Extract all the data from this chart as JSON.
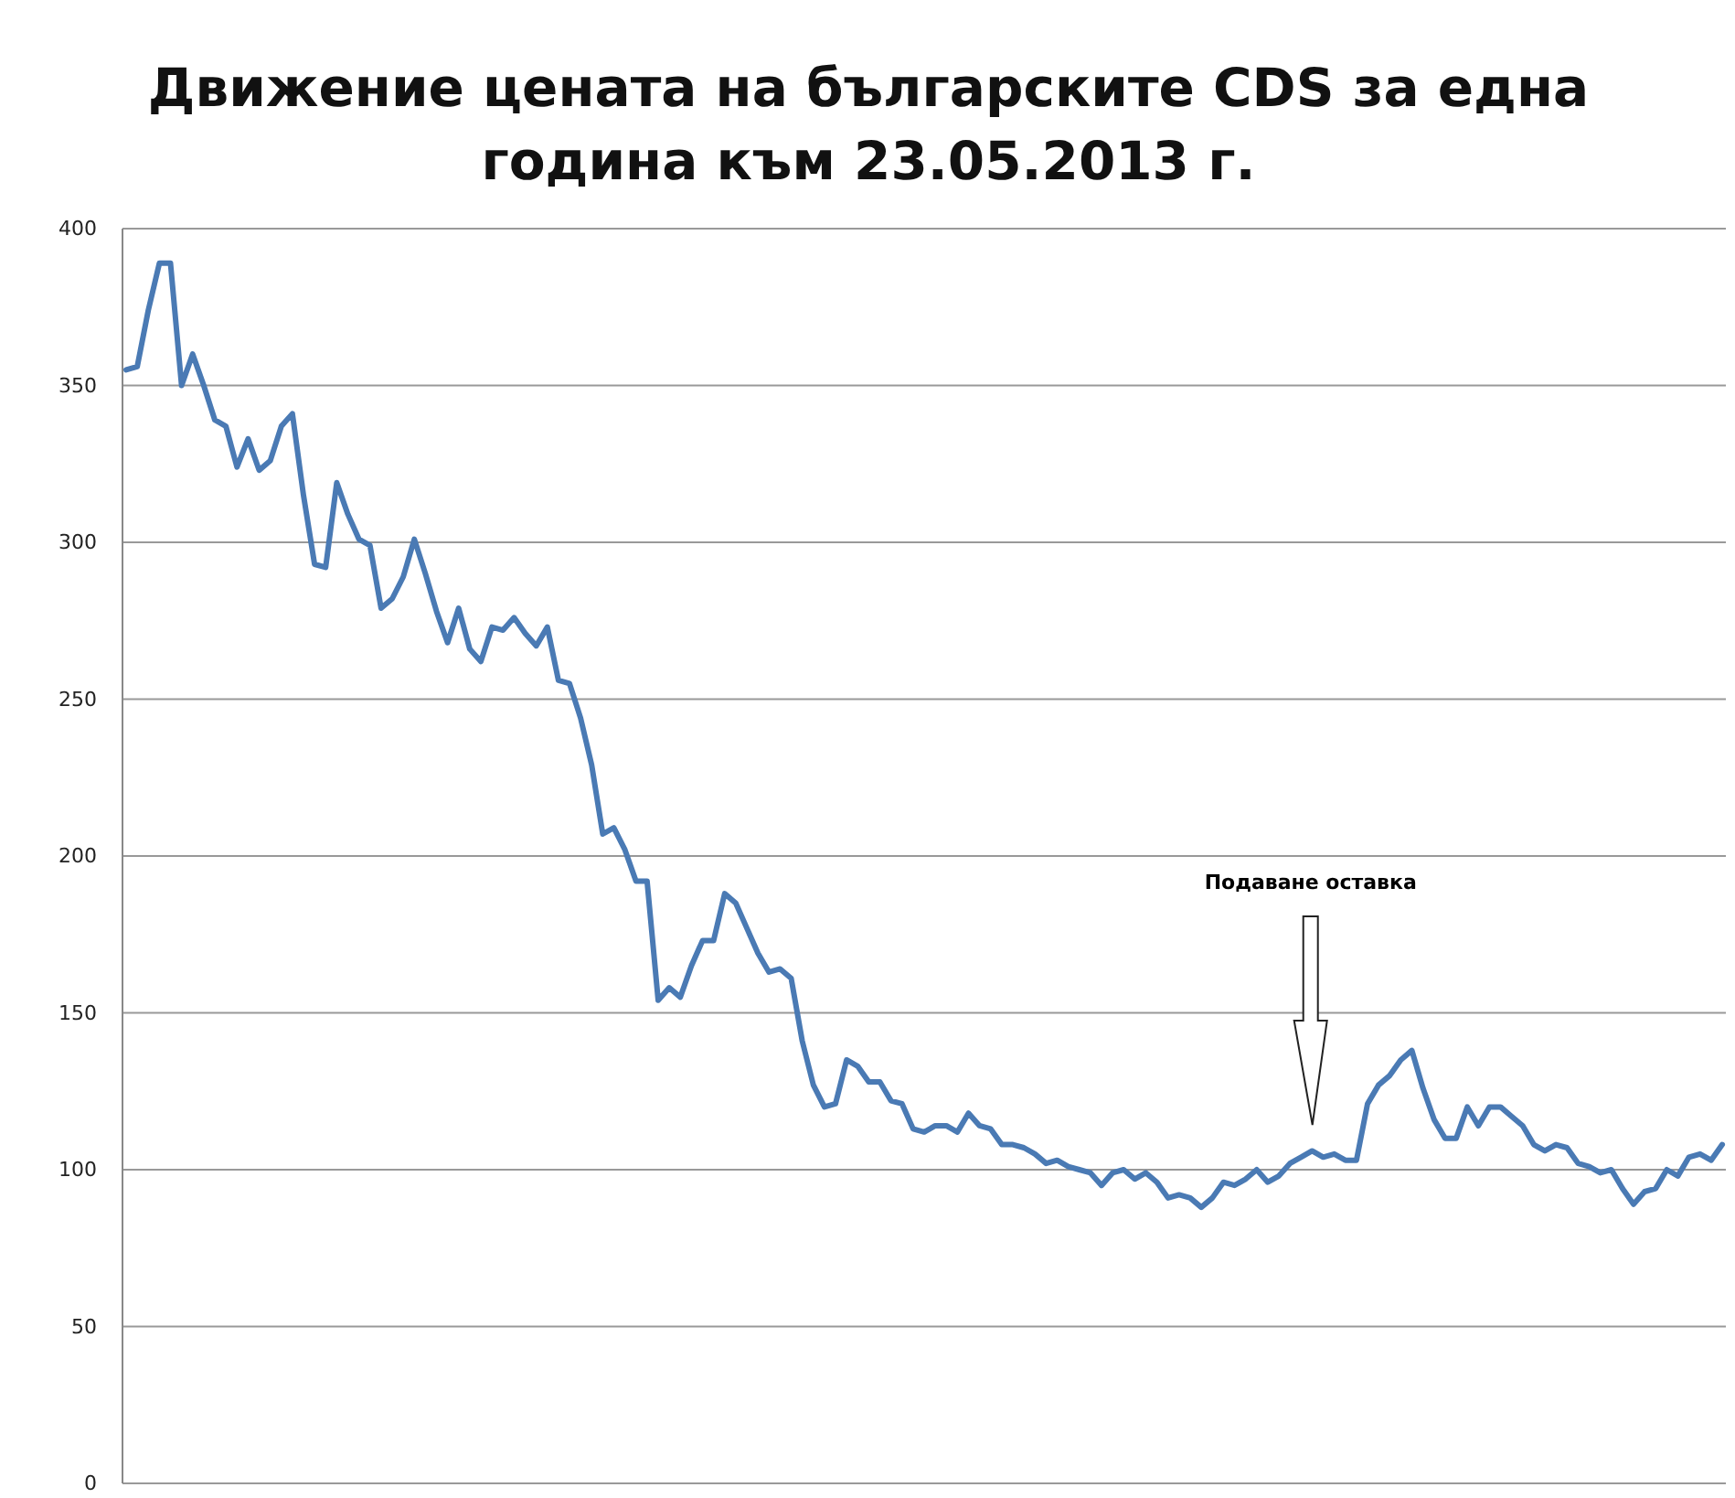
{
  "chart_data": {
    "type": "line",
    "title": "Движение цената на българските CDS за една година към 23.05.2013 г.",
    "categories": [
      null,
      null,
      null,
      null,
      null,
      null,
      null,
      null,
      null,
      null,
      null,
      null,
      null,
      null,
      null,
      null,
      null,
      null,
      null,
      null,
      null,
      null,
      null,
      null,
      null,
      null,
      null,
      null,
      null,
      null,
      null,
      null,
      null,
      null,
      null,
      null,
      null,
      null,
      null,
      null,
      null,
      null,
      null,
      null,
      null,
      null,
      null,
      null,
      null,
      null,
      null,
      null,
      null,
      null,
      null,
      null,
      null,
      null,
      null,
      null,
      null,
      null,
      null,
      null,
      null,
      null,
      null,
      null,
      null,
      null,
      null,
      null,
      null,
      null,
      null,
      null,
      null,
      null,
      null,
      null,
      null,
      null,
      null,
      null,
      null,
      null,
      null,
      null,
      null,
      null,
      null,
      null,
      null,
      null,
      null,
      null,
      null,
      null,
      null,
      null,
      null,
      null,
      null,
      null,
      null,
      null,
      null,
      null,
      null,
      null,
      null,
      null,
      null,
      null,
      null,
      null,
      null,
      null,
      null,
      null,
      null,
      null,
      null,
      null,
      null,
      null,
      null,
      null,
      null,
      null,
      null,
      null,
      null,
      null,
      null,
      null,
      null,
      null,
      null,
      null,
      null,
      null,
      null,
      null,
      null
    ],
    "series": [
      {
        "color": "#4a7ab4",
        "values": [
          355,
          356,
          374,
          389,
          389,
          350,
          360,
          350,
          339,
          337,
          324,
          333,
          323,
          326,
          337,
          341,
          315,
          293,
          292,
          319,
          309,
          301,
          299,
          279,
          282,
          289,
          301,
          290,
          278,
          268,
          279,
          266,
          262,
          273,
          272,
          276,
          271,
          267,
          273,
          256,
          255,
          244,
          229,
          207,
          209,
          202,
          192,
          192,
          154,
          158,
          155,
          165,
          173,
          173,
          188,
          185,
          177,
          169,
          163,
          164,
          161,
          141,
          127,
          120,
          121,
          135,
          133,
          128,
          128,
          122,
          121,
          113,
          112,
          114,
          114,
          112,
          118,
          114,
          113,
          108,
          108,
          107,
          105,
          102,
          103,
          101,
          100,
          99,
          95,
          99,
          100,
          97,
          99,
          96,
          91,
          92,
          91,
          88,
          91,
          96,
          95,
          97,
          100,
          96,
          98,
          102,
          104,
          106,
          104,
          105,
          103,
          103,
          121,
          127,
          130,
          135,
          138,
          126,
          116,
          110,
          110,
          120,
          114,
          120,
          120,
          117,
          114,
          108,
          106,
          108,
          107,
          102,
          101,
          99,
          100,
          94,
          89,
          93,
          94,
          100,
          98,
          104,
          105,
          103,
          108
        ]
      }
    ],
    "ylim": [
      0,
      400
    ],
    "yticks": [
      0,
      50,
      100,
      150,
      200,
      250,
      300,
      350,
      400
    ],
    "grid": "y",
    "tick_labels": "y",
    "line_style": "solid",
    "annotations": [
      "Подаване оставка"
    ]
  }
}
